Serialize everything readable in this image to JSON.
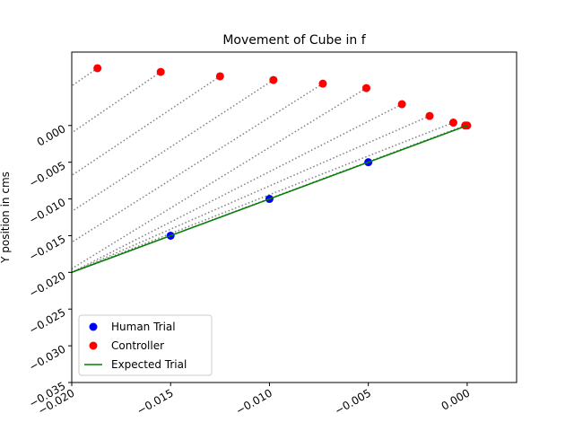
{
  "chart_data": {
    "type": "scatter",
    "title": "Movement of Cube in f",
    "ylabel": "Y position in cms",
    "xlim": [
      -0.02,
      0.0025
    ],
    "ylim": [
      -0.035,
      0.01
    ],
    "xticks": [
      {
        "value": -0.02,
        "label": "−0.020"
      },
      {
        "value": -0.015,
        "label": "−0.015"
      },
      {
        "value": -0.01,
        "label": "−0.010"
      },
      {
        "value": -0.005,
        "label": "−0.005"
      },
      {
        "value": 0,
        "label": "0.000"
      }
    ],
    "yticks": [
      {
        "value": -0.035,
        "label": "−0.035"
      },
      {
        "value": -0.03,
        "label": "−0.030"
      },
      {
        "value": -0.025,
        "label": "−0.025"
      },
      {
        "value": -0.02,
        "label": "−0.020"
      },
      {
        "value": -0.015,
        "label": "−0.015"
      },
      {
        "value": -0.01,
        "label": "−0.010"
      },
      {
        "value": -0.005,
        "label": "−0.005"
      },
      {
        "value": 0,
        "label": "0.000"
      }
    ],
    "legend": "lower left",
    "series": [
      {
        "name": "Human Trial",
        "kind": "scatter",
        "color": "#0000ff",
        "x": [
          -0.015,
          -0.01,
          -0.005
        ],
        "y": [
          -0.015,
          -0.01,
          -0.005
        ]
      },
      {
        "name": "Controller",
        "kind": "scatter",
        "color": "#ff0000",
        "x": [
          -0.0187,
          -0.0155,
          -0.0125,
          -0.0098,
          -0.0073,
          -0.0051,
          -0.0033,
          -0.0019,
          -0.0007,
          -0.0001,
          0.0
        ],
        "y": [
          0.0078,
          0.0073,
          0.0067,
          0.0062,
          0.0057,
          0.0051,
          0.0029,
          0.0013,
          0.0004,
          0.0,
          0.0
        ]
      },
      {
        "name": "Expected Trial",
        "kind": "line",
        "color": "#008000",
        "x": [
          -0.02,
          0.0
        ],
        "y": [
          -0.02,
          0.0
        ]
      }
    ],
    "guide_color": "#808080",
    "guides": [
      {
        "x": [
          -0.0187,
          -0.02
        ],
        "y": [
          0.0078,
          0.0054
        ]
      },
      {
        "x": [
          -0.0155,
          -0.02
        ],
        "y": [
          0.0073,
          -0.001
        ]
      },
      {
        "x": [
          -0.0125,
          -0.02
        ],
        "y": [
          0.0067,
          -0.0068
        ]
      },
      {
        "x": [
          -0.0098,
          -0.02
        ],
        "y": [
          0.0062,
          -0.0117
        ]
      },
      {
        "x": [
          -0.0073,
          -0.02
        ],
        "y": [
          0.0057,
          -0.0159
        ]
      },
      {
        "x": [
          -0.0051,
          -0.02
        ],
        "y": [
          0.0051,
          -0.0195
        ]
      },
      {
        "x": [
          -0.0033,
          -0.02
        ],
        "y": [
          0.0029,
          -0.02
        ]
      },
      {
        "x": [
          -0.0019,
          -0.02
        ],
        "y": [
          0.0013,
          -0.02
        ]
      },
      {
        "x": [
          -0.0007,
          -0.02
        ],
        "y": [
          0.0004,
          -0.02
        ]
      },
      {
        "x": [
          -0.0001,
          -0.02
        ],
        "y": [
          0.0,
          -0.02
        ]
      }
    ]
  }
}
